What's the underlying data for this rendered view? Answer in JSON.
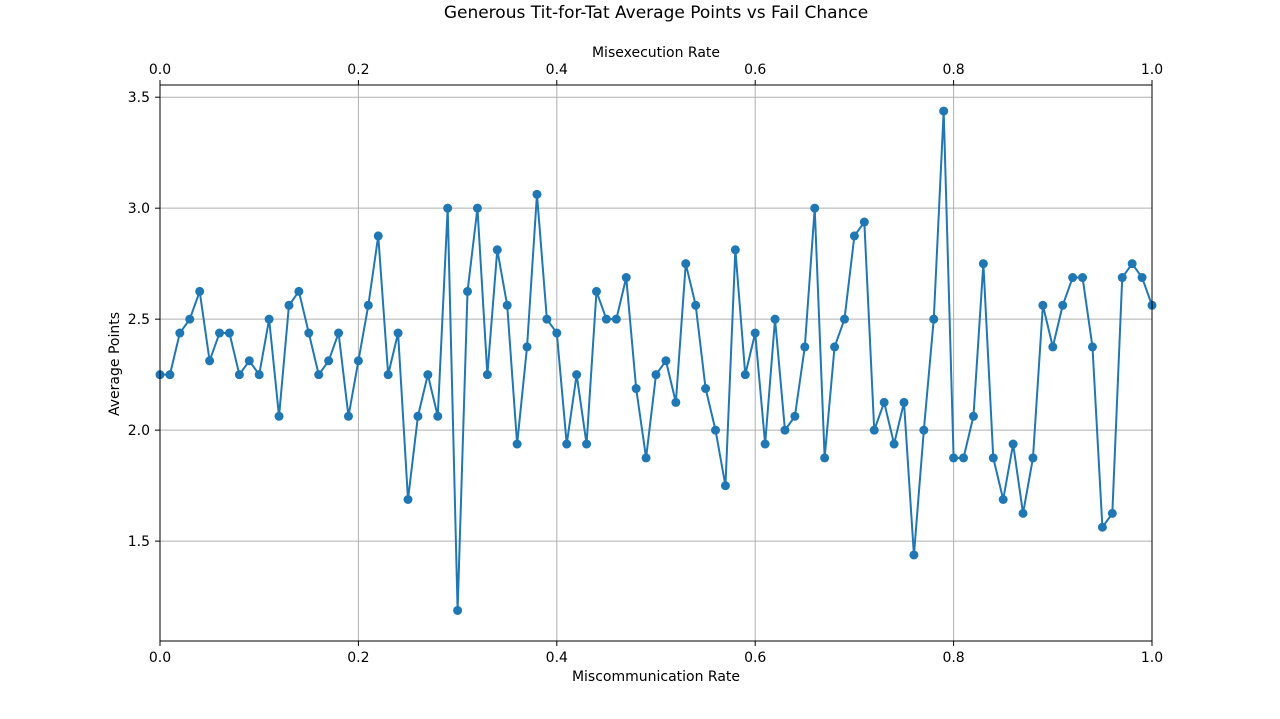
{
  "chart_data": {
    "type": "line",
    "title": "Generous Tit-for-Tat Average Points vs Fail Chance",
    "xlabel": "Miscommunication Rate",
    "xlabel_top": "Misexecution Rate",
    "ylabel": "Average Points",
    "xlim": [
      0,
      1
    ],
    "ylim": [
      1.05,
      3.555
    ],
    "x_ticks": [
      "0.0",
      "0.2",
      "0.4",
      "0.6",
      "0.8",
      "1.0"
    ],
    "x_ticks_top": [
      "0.0",
      "0.2",
      "0.4",
      "0.6",
      "0.8",
      "1.0"
    ],
    "y_ticks": [
      "1.5",
      "2.0",
      "2.5",
      "3.0",
      "3.5"
    ],
    "grid": true,
    "color": "#1f77b4",
    "marker": "circle",
    "series": [
      {
        "x": [
          0.0,
          0.01,
          0.02,
          0.03,
          0.04,
          0.05,
          0.06,
          0.07,
          0.08,
          0.09,
          0.1,
          0.11,
          0.12,
          0.13,
          0.14,
          0.15,
          0.16,
          0.17,
          0.18,
          0.19,
          0.2,
          0.21,
          0.22,
          0.23,
          0.24,
          0.25,
          0.26,
          0.27,
          0.28,
          0.29,
          0.3,
          0.31,
          0.32,
          0.33,
          0.34,
          0.35,
          0.36,
          0.37,
          0.38,
          0.39,
          0.4,
          0.41,
          0.42,
          0.43,
          0.44,
          0.45,
          0.46,
          0.47,
          0.48,
          0.49,
          0.5,
          0.51,
          0.52,
          0.53,
          0.54,
          0.55,
          0.56,
          0.57,
          0.58,
          0.59,
          0.6,
          0.61,
          0.62,
          0.63,
          0.64,
          0.65,
          0.66,
          0.67,
          0.68,
          0.69,
          0.7,
          0.71,
          0.72,
          0.73,
          0.74,
          0.75,
          0.76,
          0.77,
          0.78,
          0.79,
          0.8,
          0.81,
          0.82,
          0.83,
          0.84,
          0.85,
          0.86,
          0.87,
          0.88,
          0.89,
          0.9,
          0.91,
          0.92,
          0.93,
          0.94,
          0.95,
          0.96,
          0.97,
          0.98,
          0.99,
          1.0
        ],
        "y": [
          2.25,
          2.25,
          2.4375,
          2.5,
          2.625,
          2.3125,
          2.4375,
          2.4375,
          2.25,
          2.3125,
          2.25,
          2.5,
          2.0625,
          2.5625,
          2.625,
          2.4375,
          2.25,
          2.3125,
          2.4375,
          2.0625,
          2.3125,
          2.5625,
          2.875,
          2.25,
          2.4375,
          1.6875,
          2.0625,
          2.25,
          2.0625,
          3.0,
          1.1875,
          2.625,
          3.0,
          2.25,
          2.8125,
          2.5625,
          1.9375,
          2.375,
          3.0625,
          2.5,
          2.4375,
          1.9375,
          2.25,
          1.9375,
          2.625,
          2.5,
          2.5,
          2.6875,
          2.1875,
          1.875,
          2.25,
          2.3125,
          2.125,
          2.75,
          2.5625,
          2.1875,
          2.0,
          1.75,
          2.8125,
          2.25,
          2.4375,
          1.9375,
          2.5,
          2.0,
          2.0625,
          2.375,
          3.0,
          1.875,
          2.375,
          2.5,
          2.875,
          2.9375,
          2.0,
          2.125,
          1.9375,
          2.125,
          1.4375,
          2.0,
          2.5,
          3.4375,
          1.875,
          1.875,
          2.0625,
          2.75,
          1.875,
          1.6875,
          1.9375,
          1.625,
          1.875,
          2.5625,
          2.375,
          2.5625,
          2.6875,
          2.6875,
          2.375,
          1.5625,
          1.625,
          2.6875,
          2.75,
          2.6875,
          2.5625
        ]
      }
    ]
  }
}
